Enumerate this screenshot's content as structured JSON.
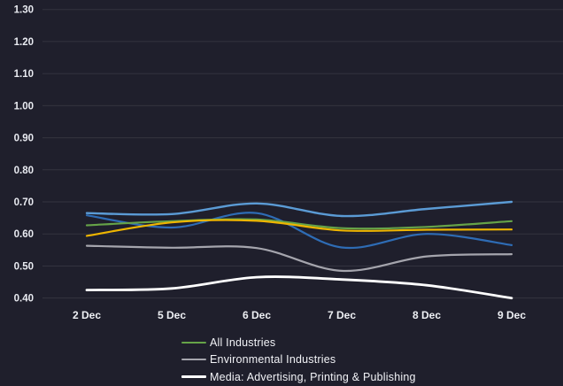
{
  "chart_data": {
    "type": "line",
    "title": "",
    "x_labels": [
      "2 Dec",
      "5 Dec",
      "6 Dec",
      "7 Dec",
      "8 Dec",
      "9 Dec"
    ],
    "y_tick_labels": [
      "1.30",
      "1.20",
      "1.10",
      "1.00",
      "0.90",
      "0.80",
      "0.70",
      "0.60",
      "0.50",
      "0.40"
    ],
    "y_min": 0.4,
    "y_max": 1.3,
    "grid": true,
    "legend_position": "bottom-left",
    "series": [
      {
        "id": "dark-blue-series",
        "color": "#2e6cb5",
        "width": 2.2,
        "values": [
          0.658,
          0.62,
          0.665,
          0.558,
          0.6,
          0.565
        ]
      },
      {
        "id": "green-series",
        "name": "All Industries",
        "color": "#66a348",
        "width": 2.2,
        "values": [
          0.627,
          0.64,
          0.645,
          0.618,
          0.622,
          0.64
        ]
      },
      {
        "id": "yellow-series",
        "color": "#eeb500",
        "width": 2.2,
        "values": [
          0.594,
          0.636,
          0.641,
          0.611,
          0.613,
          0.614
        ]
      },
      {
        "id": "light-blue-series",
        "color": "#5b9bd5",
        "width": 2.4,
        "values": [
          0.665,
          0.662,
          0.695,
          0.656,
          0.678,
          0.7
        ]
      },
      {
        "id": "gray-series",
        "name": "Environmental Industries",
        "color": "#a5a5ad",
        "width": 2.2,
        "values": [
          0.563,
          0.557,
          0.556,
          0.485,
          0.53,
          0.537
        ]
      },
      {
        "id": "white-series",
        "name": "Media: Advertising, Printing & Publishing",
        "color": "#ffffff",
        "width": 2.8,
        "values": [
          0.425,
          0.43,
          0.465,
          0.458,
          0.44,
          0.4
        ]
      }
    ],
    "legend": [
      {
        "label": "All Industries",
        "color": "#66a348",
        "thickness": 2
      },
      {
        "label": "Environmental Industries",
        "color": "#a5a5ad",
        "thickness": 2
      },
      {
        "label": "Media: Advertising, Printing & Publishing",
        "color": "#ffffff",
        "thickness": 3
      }
    ],
    "colors": {
      "background": "#1f1f2c",
      "gridline": "#34343f",
      "y_tick_text": "#e9ebf1",
      "x_tick_text": "#eef0f4"
    }
  }
}
